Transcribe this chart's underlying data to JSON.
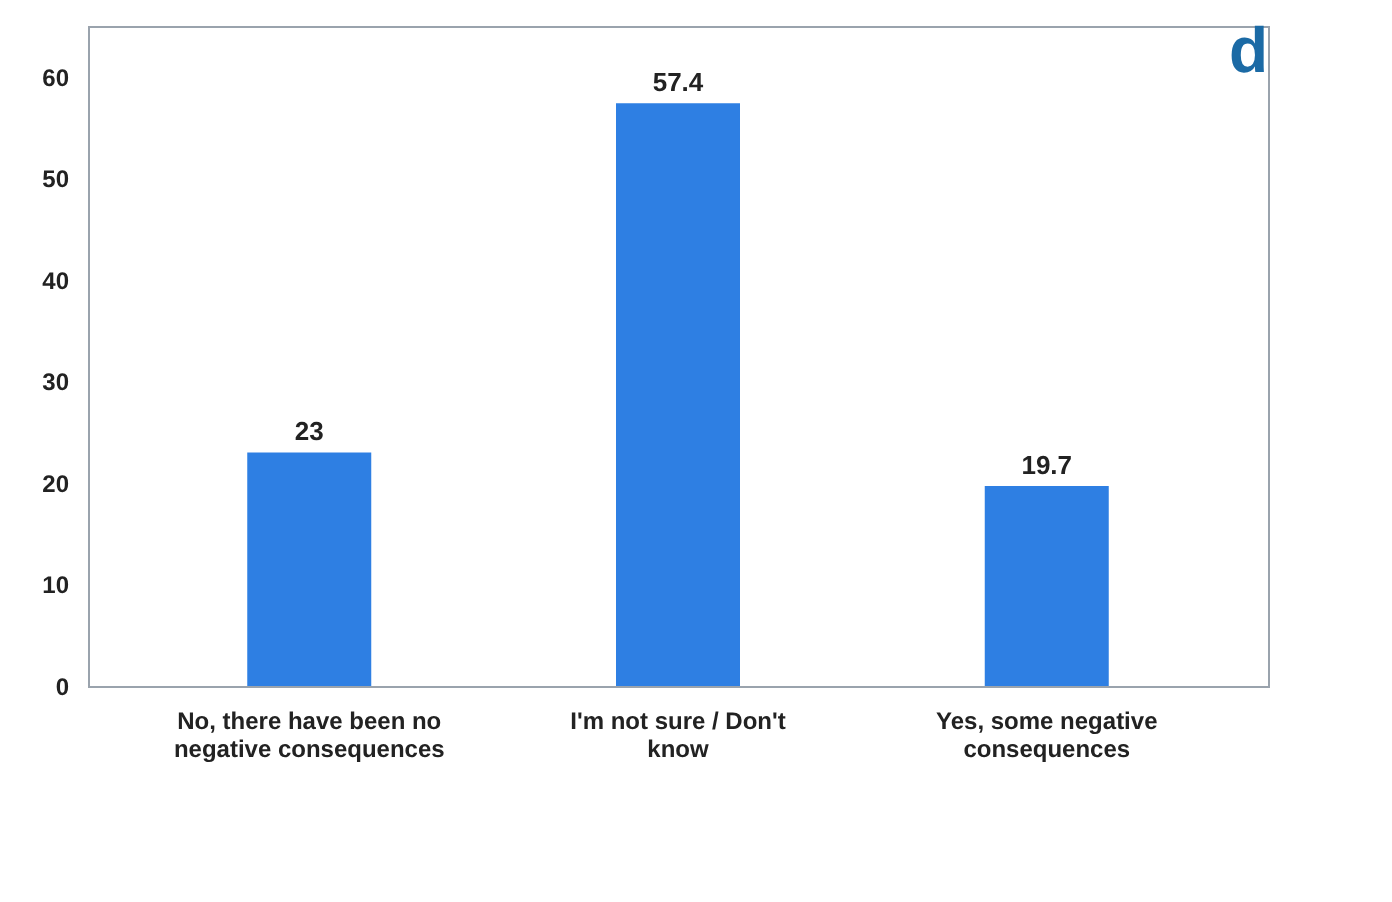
{
  "chart_data": {
    "type": "bar",
    "title": "d",
    "categories": [
      "No, there have been no negative consequences",
      "I'm not sure / Don't know",
      "Yes, some negative consequences"
    ],
    "values": [
      23,
      57.4,
      19.7
    ],
    "color": "#2e7fe3",
    "ylim": [
      0,
      65
    ],
    "yticks": [
      0,
      10,
      20,
      30,
      40,
      50,
      60
    ],
    "grid": false,
    "data_labels": true
  }
}
